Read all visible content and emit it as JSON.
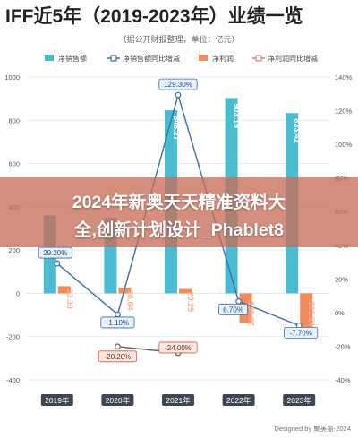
{
  "header": {
    "title": "IFF近5年（2019-2023年）业绩一览",
    "subtitle": "（据公开财报整理，单位：亿元）"
  },
  "legend": {
    "items": [
      {
        "label": "净销售额",
        "color": "#4bbbd0",
        "kind": "bar"
      },
      {
        "label": "净销售额同比增减",
        "color": "#3a6fb0",
        "kind": "line"
      },
      {
        "label": "净利润",
        "color": "#f28a5a",
        "kind": "bar"
      },
      {
        "label": "净利润同比增减",
        "color": "#d08a78",
        "kind": "line"
      }
    ]
  },
  "overlay": {
    "line1": "2024年新奥天天精准资料大",
    "line2": "全,创新计划设计_Phablet8"
  },
  "credit": "Designed by 聚美丽-2024",
  "colors": {
    "sales_bar": "#4bbbd0",
    "sales_yoy_line": "#3a6fb0",
    "profit_bar": "#f28a5a",
    "profit_yoy_line": "#6b5a55",
    "label_box_sales": "#2f6fb3",
    "label_box_profit": "#e0563a"
  },
  "chart_data": {
    "type": "bar",
    "categories": [
      "2019年",
      "2020年",
      "2021年",
      "2022年",
      "2023年"
    ],
    "series": [
      {
        "name": "净销售额",
        "axis": "left",
        "values": [
          360,
          350,
          846.27,
          903.19,
          833.42
        ],
        "labels": [
          "",
          "",
          "846.27",
          "903.19",
          "833.42"
        ]
      },
      {
        "name": "净利润",
        "axis": "left",
        "values": [
          33.3,
          26.64,
          20.25,
          -136.32,
          -201.88
        ],
        "labels": [
          "33.30",
          "26.64",
          "20.25",
          "-136.32",
          "-201.88"
        ]
      },
      {
        "name": "净销售额同比增减",
        "axis": "right",
        "type": "line",
        "values": [
          29.2,
          -1.1,
          129.3,
          6.7,
          -7.7
        ],
        "labels": [
          "29.20%",
          "-1.10%",
          "129.30%",
          "6.70%",
          "-7.70%"
        ]
      },
      {
        "name": "净利润同比增减",
        "axis": "right",
        "type": "line",
        "values": [
          null,
          -20.2,
          -24.0,
          null,
          null
        ],
        "labels": [
          "",
          "-20.20%",
          "-24.00%",
          "",
          ""
        ]
      }
    ],
    "y_left": {
      "min": -400,
      "max": 1000,
      "ticks": [
        "-400",
        "-200",
        "0",
        "200",
        "400",
        "600",
        "800",
        "1000"
      ]
    },
    "y_right": {
      "min": -40,
      "max": 140,
      "ticks": [
        "-40%",
        "-20%",
        "0%",
        "20%",
        "40%",
        "60%",
        "80%",
        "100%",
        "120%",
        "140%"
      ]
    },
    "grid": true,
    "legend_position": "top"
  }
}
